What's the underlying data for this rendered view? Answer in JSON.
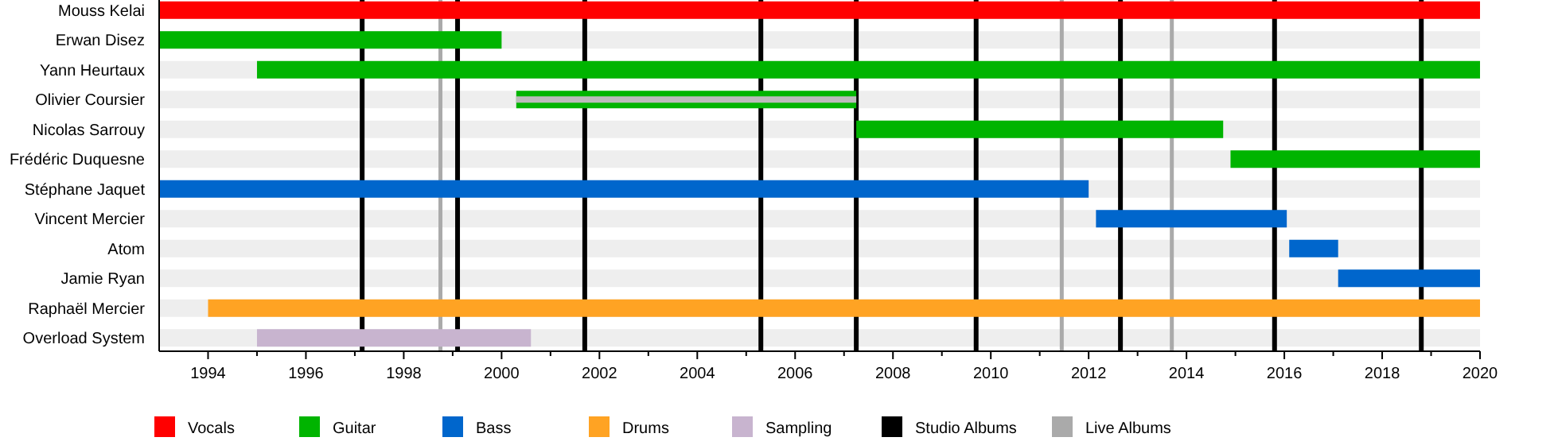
{
  "chart_data": {
    "type": "bar",
    "orientation": "horizontal",
    "legend": "bottom",
    "categories": [
      "Mouss Kelai",
      "Erwan Disez",
      "Yann Heurtaux",
      "Olivier Coursier",
      "Nicolas Sarrouy",
      "Frédéric Duquesne",
      "Stéphane Jaquet",
      "Vincent Mercier",
      "Atom",
      "Jamie Ryan",
      "Raphaël Mercier",
      "Overload System"
    ],
    "series": [
      {
        "name": "Vocals",
        "color": "#ff0000",
        "base": [
          1993,
          null,
          null,
          null,
          null,
          null,
          null,
          null,
          null,
          null,
          null,
          null
        ],
        "values": [
          27,
          null,
          null,
          null,
          null,
          null,
          null,
          null,
          null,
          null,
          null,
          null
        ]
      },
      {
        "name": "Guitar",
        "color": "#00b400",
        "base": [
          null,
          1993,
          1995,
          2000.3,
          2007.25,
          2014.9,
          null,
          null,
          null,
          null,
          null,
          null
        ],
        "values": [
          null,
          7,
          25,
          6.95,
          7.5,
          5.1,
          null,
          null,
          null,
          null,
          null,
          null
        ]
      },
      {
        "color": "#bbbbbb",
        "base": [
          null,
          null,
          null,
          2000.3,
          null,
          null,
          null,
          null,
          null,
          null,
          null,
          null
        ],
        "values": [
          null,
          null,
          null,
          6.95,
          null,
          null,
          null,
          null,
          null,
          null,
          null,
          null
        ]
      },
      {
        "name": "Bass",
        "color": "#0066cc",
        "base": [
          null,
          null,
          null,
          null,
          null,
          null,
          1993,
          2012.15,
          2016.1,
          2017.1,
          null,
          null
        ],
        "values": [
          null,
          null,
          null,
          null,
          null,
          null,
          19,
          3.9,
          1,
          2.9,
          null,
          null
        ]
      },
      {
        "name": "Drums",
        "color": "#ffa323",
        "base": [
          null,
          null,
          null,
          null,
          null,
          null,
          null,
          null,
          null,
          null,
          1994,
          null
        ],
        "values": [
          null,
          null,
          null,
          null,
          null,
          null,
          null,
          null,
          null,
          null,
          26,
          null
        ]
      },
      {
        "name": "Sampling",
        "color": "#c8b4cf",
        "base": [
          null,
          null,
          null,
          null,
          null,
          null,
          null,
          null,
          null,
          null,
          null,
          1995
        ],
        "values": [
          null,
          null,
          null,
          null,
          null,
          null,
          null,
          null,
          null,
          null,
          null,
          5.6
        ]
      }
    ],
    "ref_lines": [
      {
        "axis": "x",
        "value": 1997.15,
        "label": "Studio Albums",
        "color": "#000000"
      },
      {
        "axis": "x",
        "value": 1999.1,
        "color": "#000000"
      },
      {
        "axis": "x",
        "value": 2001.7,
        "color": "#000000"
      },
      {
        "axis": "x",
        "value": 2005.3,
        "color": "#000000"
      },
      {
        "axis": "x",
        "value": 2007.25,
        "color": "#000000"
      },
      {
        "axis": "x",
        "value": 2009.7,
        "color": "#000000"
      },
      {
        "axis": "x",
        "value": 2012.65,
        "color": "#000000"
      },
      {
        "axis": "x",
        "value": 2015.8,
        "color": "#000000"
      },
      {
        "axis": "x",
        "value": 2018.8,
        "color": "#000000"
      },
      {
        "axis": "x",
        "value": 1998.75,
        "label": "Live Albums",
        "color": "#aaaaaa"
      },
      {
        "axis": "x",
        "value": 2011.45,
        "color": "#aaaaaa"
      },
      {
        "axis": "x",
        "value": 2013.7,
        "color": "#aaaaaa"
      }
    ],
    "xlim": [
      1993,
      2020
    ],
    "xticks": [
      1994,
      {
        "value": 1995,
        "label": null
      },
      1996,
      {
        "value": 1997,
        "label": null
      },
      1998,
      {
        "value": 1999,
        "label": null
      },
      2000,
      {
        "value": 2001,
        "label": null
      },
      2002,
      {
        "value": 2003,
        "label": null
      },
      2004,
      {
        "value": 2005,
        "label": null
      },
      2006,
      {
        "value": 2007,
        "label": null
      },
      2008,
      {
        "value": 2009,
        "label": null
      },
      2010,
      {
        "value": 2011,
        "label": null
      },
      2012,
      {
        "value": 2013,
        "label": null
      },
      2014,
      {
        "value": 2015,
        "label": null
      },
      2016,
      {
        "value": 2017,
        "label": null
      },
      2018,
      {
        "value": 2019,
        "label": null
      },
      2020
    ]
  }
}
